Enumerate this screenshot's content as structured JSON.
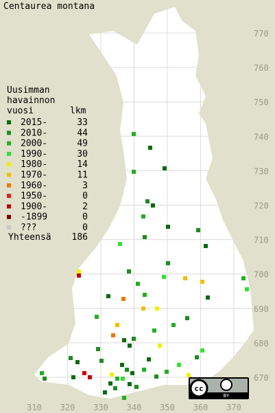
{
  "title": "Centaurea montana",
  "legend": {
    "heading": [
      "Uusimman",
      "havainnon",
      "vuosi"
    ],
    "count_heading": "lkm",
    "rows": [
      {
        "label": "2015-",
        "count": 33,
        "color": "#0b6b0b"
      },
      {
        "label": "2010-",
        "count": 44,
        "color": "#1e8c1e"
      },
      {
        "label": "2000-",
        "count": 49,
        "color": "#22b022"
      },
      {
        "label": "1990-",
        "count": 30,
        "color": "#33e033"
      },
      {
        "label": "1980-",
        "count": 14,
        "color": "#f0f000"
      },
      {
        "label": "1970-",
        "count": 11,
        "color": "#f0c000"
      },
      {
        "label": "1960-",
        "count": 3,
        "color": "#f07800"
      },
      {
        "label": "1950-",
        "count": 0,
        "color": "#e02020"
      },
      {
        "label": "1900-",
        "count": 2,
        "color": "#c00000"
      },
      {
        "label": "-1899",
        "count": 0,
        "color": "#800000"
      },
      {
        "label": "???",
        "count": 0,
        "color": "#c8c8c8"
      }
    ],
    "total_label": "Yhteensä",
    "total": 186
  },
  "x_labels": [
    310,
    320,
    330,
    340,
    350,
    360,
    370
  ],
  "y_labels": [
    770,
    760,
    750,
    740,
    730,
    720,
    710,
    700,
    690,
    680,
    670
  ],
  "license": {
    "cc": "cc",
    "by": "BY"
  }
}
